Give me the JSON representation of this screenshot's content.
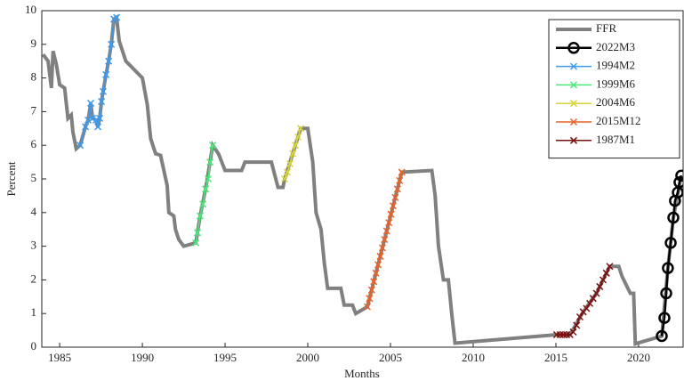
{
  "chart_data": {
    "type": "line",
    "xlabel": "Months",
    "ylabel": "Percent",
    "xlim": [
      1983.92,
      2022.69
    ],
    "ylim": [
      0,
      10
    ],
    "xticks": [
      1985,
      1990,
      1995,
      2000,
      2005,
      2010,
      2015,
      2020
    ],
    "yticks": [
      0,
      1,
      2,
      3,
      4,
      5,
      6,
      7,
      8,
      9,
      10
    ],
    "legend": "upper right",
    "series": [
      {
        "name": "FFR",
        "color": "#808080",
        "marker": "none",
        "x": [
          1984.0,
          1984.3,
          1984.5,
          1984.6,
          1984.8,
          1985.0,
          1985.3,
          1985.5,
          1985.7,
          1985.8,
          1986.0,
          1986.24,
          1986.56,
          1986.72,
          1986.88,
          1986.99,
          1987.2,
          1987.31,
          1987.42,
          1987.53,
          1987.63,
          1987.8,
          1987.96,
          1988.12,
          1988.28,
          1988.44,
          1988.6,
          1989.0,
          1989.5,
          1990.0,
          1990.3,
          1990.5,
          1990.8,
          1991.1,
          1991.5,
          1991.6,
          1991.9,
          1992.0,
          1992.2,
          1992.5,
          1993.23,
          1993.49,
          1993.82,
          1994.09,
          1994.25,
          1994.6,
          1995.0,
          1996.0,
          1996.2,
          1997.8,
          1998.2,
          1998.5,
          1998.6,
          1999.09,
          1999.57,
          2000.0,
          2000.3,
          2000.5,
          2000.8,
          2001.0,
          2001.2,
          2002.0,
          2002.2,
          2002.7,
          2002.9,
          2003.6,
          2005.68,
          2007.5,
          2007.7,
          2007.9,
          2008.2,
          2008.5,
          2008.7,
          2008.9,
          2015.05,
          2015.85,
          2016.65,
          2017.45,
          2018.25,
          2018.8,
          2019.0,
          2019.5,
          2019.7,
          2019.8,
          2021.4,
          2021.77,
          2022.1,
          2022.58
        ],
        "values": [
          8.7,
          8.5,
          7.7,
          8.8,
          8.4,
          7.8,
          7.7,
          6.8,
          6.9,
          6.4,
          5.9,
          6.0,
          6.55,
          6.75,
          7.25,
          6.8,
          6.75,
          6.55,
          6.8,
          7.3,
          7.6,
          8.1,
          8.5,
          9.0,
          9.75,
          9.8,
          9.1,
          8.5,
          8.25,
          8.0,
          7.2,
          6.2,
          5.75,
          5.7,
          4.8,
          4.0,
          3.9,
          3.5,
          3.2,
          3.0,
          3.1,
          3.9,
          4.7,
          5.5,
          6.0,
          5.75,
          5.25,
          5.25,
          5.5,
          5.5,
          4.75,
          4.75,
          5.0,
          5.75,
          6.5,
          6.5,
          5.5,
          4.0,
          3.5,
          2.5,
          1.75,
          1.75,
          1.25,
          1.25,
          1.0,
          1.2,
          5.2,
          5.25,
          4.5,
          3.0,
          2.0,
          2.0,
          1.0,
          0.12,
          0.37,
          0.37,
          1.05,
          1.6,
          2.4,
          2.4,
          2.1,
          1.6,
          1.6,
          0.1,
          0.33,
          2.35,
          3.85,
          5.1
        ]
      },
      {
        "name": "2022M3",
        "color": "#000000",
        "marker": "o",
        "x": [
          2021.4,
          2021.56,
          2021.67,
          2021.77,
          2021.94,
          2022.1,
          2022.2,
          2022.37,
          2022.47,
          2022.58
        ],
        "values": [
          0.33,
          0.87,
          1.6,
          2.35,
          3.1,
          3.85,
          4.35,
          4.6,
          4.9,
          5.1
        ]
      },
      {
        "name": "1994M2",
        "color": "#3d9bef",
        "marker": "x",
        "x": [
          1986.24,
          1986.56,
          1986.72,
          1986.88,
          1986.99,
          1987.2,
          1987.31,
          1987.42,
          1987.53,
          1987.63,
          1987.8,
          1987.96,
          1988.12,
          1988.28,
          1988.44
        ],
        "values": [
          6.0,
          6.55,
          6.75,
          7.25,
          6.8,
          6.75,
          6.55,
          6.8,
          7.3,
          7.6,
          8.1,
          8.5,
          9.0,
          9.75,
          9.8
        ]
      },
      {
        "name": "1999M6",
        "color": "#4de87a",
        "marker": "x",
        "x": [
          1993.23,
          1993.33,
          1993.49,
          1993.66,
          1993.82,
          1993.98,
          1994.09,
          1994.25
        ],
        "values": [
          3.1,
          3.4,
          3.9,
          4.25,
          4.7,
          5.0,
          5.5,
          6.0
        ]
      },
      {
        "name": "2004M6",
        "color": "#d6d63a",
        "marker": "x",
        "x": [
          1998.6,
          1998.76,
          1998.92,
          1999.09,
          1999.25,
          1999.41,
          1999.57
        ],
        "values": [
          5.0,
          5.2,
          5.45,
          5.75,
          6.0,
          6.25,
          6.5
        ]
      },
      {
        "name": "2015M12",
        "color": "#e8632a",
        "marker": "x",
        "x": [
          2003.6,
          2003.73,
          2003.86,
          2003.99,
          2004.12,
          2004.25,
          2004.38,
          2004.51,
          2004.64,
          2004.77,
          2004.9,
          2005.03,
          2005.16,
          2005.29,
          2005.42,
          2005.55,
          2005.68
        ],
        "values": [
          1.2,
          1.45,
          1.7,
          1.95,
          2.2,
          2.45,
          2.7,
          2.95,
          3.2,
          3.45,
          3.7,
          3.95,
          4.2,
          4.45,
          4.7,
          4.95,
          5.2
        ]
      },
      {
        "name": "1987M1",
        "color": "#7a1010",
        "marker": "x",
        "x": [
          2015.05,
          2015.25,
          2015.45,
          2015.65,
          2015.85,
          2016.05,
          2016.25,
          2016.45,
          2016.65,
          2016.85,
          2017.05,
          2017.25,
          2017.45,
          2017.65,
          2017.85,
          2018.05,
          2018.25
        ],
        "values": [
          0.37,
          0.37,
          0.37,
          0.37,
          0.37,
          0.45,
          0.65,
          0.9,
          1.05,
          1.15,
          1.3,
          1.45,
          1.6,
          1.8,
          2.0,
          2.2,
          2.4
        ]
      }
    ]
  }
}
